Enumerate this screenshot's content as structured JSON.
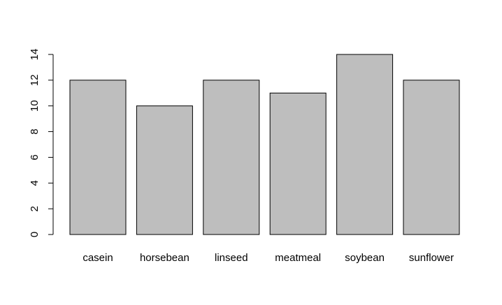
{
  "chart_data": {
    "type": "bar",
    "categories": [
      "casein",
      "horsebean",
      "linseed",
      "meatmeal",
      "soybean",
      "sunflower"
    ],
    "values": [
      12,
      10,
      12,
      11,
      14,
      12
    ],
    "title": "",
    "xlabel": "",
    "ylabel": "",
    "ylim": [
      0,
      14
    ],
    "yticks": [
      0,
      2,
      4,
      6,
      8,
      10,
      12,
      14
    ],
    "ytick_labels": [
      "0",
      "2",
      "4",
      "6",
      "8",
      "10",
      "12",
      "14"
    ],
    "grid": false,
    "legend": "none",
    "colors": {
      "bar_fill": "#bebebe",
      "bar_stroke": "#000000",
      "axis": "#000000",
      "background": "#ffffff"
    }
  }
}
